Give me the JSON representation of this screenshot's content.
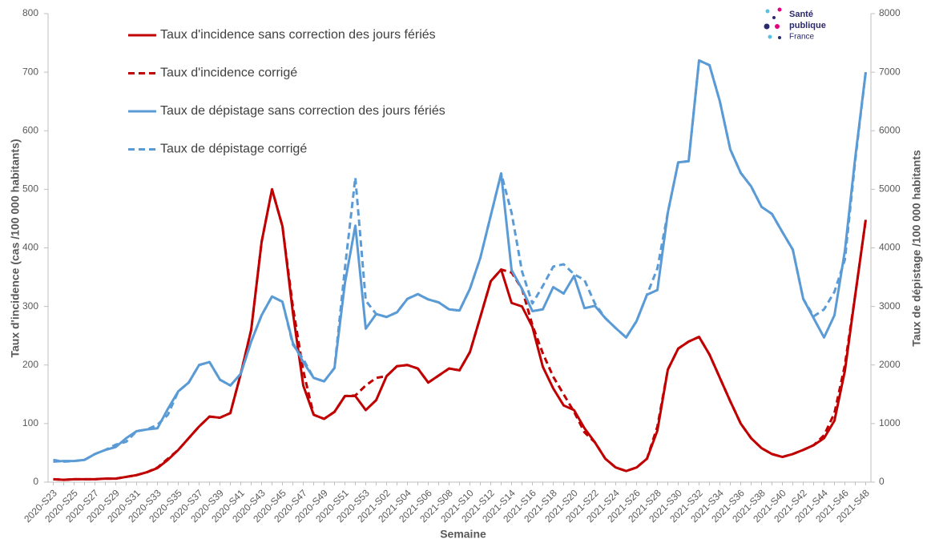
{
  "chart_data": {
    "type": "line",
    "x_label": "Semaine",
    "y_label": "Taux d'incidence (cas /100 000 habitants)",
    "y2_label": "Taux de dépistage /100 000 habitants",
    "categories": [
      "2020-S23",
      null,
      "2020-S25",
      null,
      "2020-S27",
      null,
      "2020-S29",
      null,
      "2020-S31",
      null,
      "2020-S33",
      null,
      "2020-S35",
      null,
      "2020-S37",
      null,
      "2020-S39",
      null,
      "2020-S41",
      null,
      "2020-S43",
      null,
      "2020-S45",
      null,
      "2020-S47",
      null,
      "2020-S49",
      null,
      "2020-S51",
      null,
      "2020-S53",
      null,
      "2021-S02",
      null,
      "2021-S04",
      null,
      "2021-S06",
      null,
      "2021-S08",
      null,
      "2021-S10",
      null,
      "2021-S12",
      null,
      "2021-S14",
      null,
      "2021-S16",
      null,
      "2021-S18",
      null,
      "2021-S20",
      null,
      "2021-S22",
      null,
      "2021-S24",
      null,
      "2021-S26",
      null,
      "2021-S28",
      null,
      "2021-S30",
      null,
      "2021-S32",
      null,
      "2021-S34",
      null,
      "2021-S36",
      null,
      "2021-S38",
      null,
      "2021-S40",
      null,
      "2021-S42",
      null,
      "2021-S44",
      null,
      "2021-S46",
      null,
      "2021-S48"
    ],
    "ylim": [
      0,
      800
    ],
    "yticks": [
      0,
      100,
      200,
      300,
      400,
      500,
      600,
      700,
      800
    ],
    "y2lim": [
      0,
      8000
    ],
    "y2ticks": [
      0,
      1000,
      2000,
      3000,
      4000,
      5000,
      6000,
      7000,
      8000
    ],
    "grid": false,
    "legend": "upper left",
    "series": [
      {
        "name": "Taux d'incidence sans correction des jours fériés",
        "color": "#c00000",
        "style": "solid",
        "axis": "y",
        "values": [
          5,
          4,
          5,
          5,
          5,
          6,
          6,
          9,
          12,
          17,
          24,
          38,
          55,
          75,
          95,
          112,
          110,
          118,
          185,
          260,
          410,
          500,
          437,
          290,
          165,
          115,
          108,
          120,
          147,
          147,
          123,
          140,
          181,
          198,
          200,
          194,
          170,
          182,
          194,
          191,
          222,
          282,
          343,
          363,
          306,
          300,
          265,
          197,
          160,
          131,
          123,
          92,
          68,
          40,
          25,
          19,
          25,
          40,
          88,
          192,
          228,
          240,
          248,
          218,
          178,
          138,
          100,
          75,
          58,
          48,
          43,
          48,
          55,
          63,
          75,
          105,
          190,
          320,
          448
        ]
      },
      {
        "name": "Taux d'incidence corrigé",
        "color": "#c00000",
        "style": "dashed",
        "axis": "y",
        "values": [
          5,
          4,
          5,
          5,
          5,
          6,
          6,
          9,
          12,
          17,
          25,
          40,
          55,
          75,
          95,
          112,
          110,
          118,
          185,
          260,
          410,
          500,
          437,
          300,
          190,
          115,
          108,
          120,
          147,
          148,
          165,
          178,
          181,
          198,
          200,
          194,
          170,
          182,
          194,
          191,
          222,
          282,
          343,
          363,
          358,
          330,
          268,
          220,
          180,
          150,
          120,
          85,
          68,
          40,
          25,
          19,
          25,
          40,
          95,
          192,
          228,
          240,
          248,
          218,
          178,
          138,
          100,
          75,
          58,
          48,
          43,
          48,
          55,
          63,
          80,
          118,
          200,
          320,
          448
        ]
      },
      {
        "name": "Taux de dépistage sans correction des jours fériés",
        "color": "#5b9bd5",
        "style": "solid",
        "axis": "y2",
        "values": [
          350,
          360,
          360,
          380,
          480,
          550,
          600,
          750,
          870,
          900,
          920,
          1250,
          1550,
          1700,
          2000,
          2050,
          1750,
          1650,
          1850,
          2400,
          2850,
          3170,
          3080,
          2380,
          2050,
          1780,
          1720,
          1950,
          3400,
          4380,
          2620,
          2870,
          2820,
          2900,
          3130,
          3210,
          3120,
          3070,
          2950,
          2930,
          3300,
          3830,
          4550,
          5270,
          3620,
          3300,
          2920,
          2950,
          3330,
          3220,
          3520,
          2970,
          3010,
          2800,
          2630,
          2470,
          2750,
          3200,
          3280,
          4600,
          5460,
          5480,
          7200,
          7120,
          6500,
          5680,
          5280,
          5050,
          4700,
          4580,
          4270,
          3970,
          3130,
          2800,
          2470,
          2850,
          3950,
          5550,
          7000
        ]
      },
      {
        "name": "Taux de dépistage corrigé",
        "color": "#5b9bd5",
        "style": "dashed",
        "axis": "y2",
        "values": [
          380,
          350,
          360,
          380,
          480,
          550,
          640,
          690,
          870,
          900,
          980,
          1150,
          1550,
          1700,
          2000,
          2050,
          1750,
          1650,
          1850,
          2400,
          2850,
          3170,
          3080,
          2350,
          2100,
          1780,
          1720,
          1950,
          3650,
          5200,
          3100,
          2870,
          2820,
          2900,
          3130,
          3210,
          3120,
          3070,
          2950,
          2930,
          3300,
          3830,
          4550,
          5270,
          4600,
          3600,
          3050,
          3350,
          3680,
          3720,
          3550,
          3450,
          3050,
          2800,
          2630,
          2470,
          2750,
          3200,
          3650,
          4600,
          5460,
          5480,
          7200,
          7120,
          6500,
          5680,
          5280,
          5050,
          4700,
          4580,
          4270,
          3970,
          3130,
          2830,
          2950,
          3250,
          3800,
          5500,
          7000
        ]
      }
    ]
  },
  "logo": {
    "lines": [
      "Santé",
      "publique",
      "France"
    ]
  }
}
